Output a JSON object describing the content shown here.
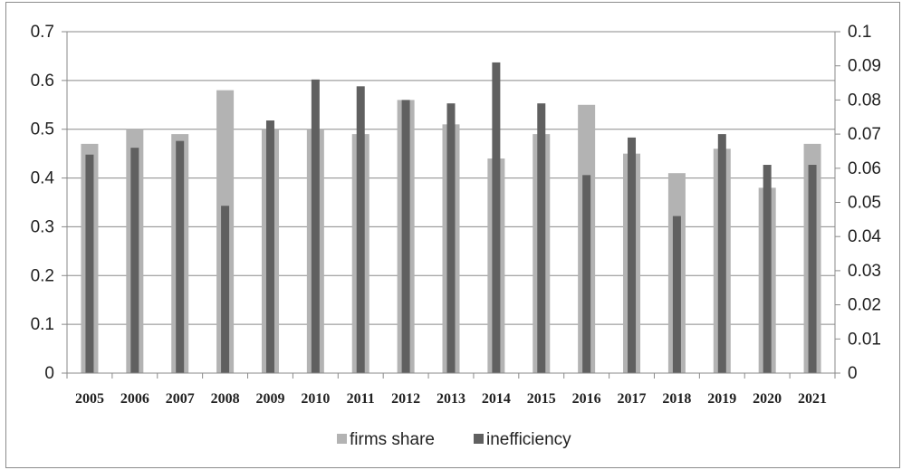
{
  "chart_data": {
    "type": "bar",
    "categories": [
      "2005",
      "2006",
      "2007",
      "2008",
      "2009",
      "2010",
      "2011",
      "2012",
      "2013",
      "2014",
      "2015",
      "2016",
      "2017",
      "2018",
      "2019",
      "2020",
      "2021"
    ],
    "series": [
      {
        "name": "firms share",
        "axis": "left",
        "color": "#b3b3b3",
        "values": [
          0.47,
          0.5,
          0.49,
          0.58,
          0.5,
          0.5,
          0.49,
          0.56,
          0.51,
          0.44,
          0.49,
          0.55,
          0.45,
          0.41,
          0.46,
          0.38,
          0.47
        ]
      },
      {
        "name": "inefficiency",
        "axis": "right",
        "color": "#606060",
        "values": [
          0.064,
          0.066,
          0.068,
          0.049,
          0.074,
          0.086,
          0.084,
          0.08,
          0.079,
          0.091,
          0.079,
          0.058,
          0.069,
          0.046,
          0.07,
          0.061,
          0.061
        ]
      }
    ],
    "y_left": {
      "ylim": [
        0,
        0.7
      ],
      "ticks": [
        "0",
        "0.1",
        "0.2",
        "0.3",
        "0.4",
        "0.5",
        "0.6",
        "0.7"
      ]
    },
    "y_right": {
      "ylim": [
        0,
        0.1
      ],
      "ticks": [
        "0",
        "0.01",
        "0.02",
        "0.03",
        "0.04",
        "0.05",
        "0.06",
        "0.07",
        "0.08",
        "0.09",
        "0.1"
      ]
    },
    "title": "",
    "xlabel": "",
    "ylabel": "",
    "grid": true,
    "gridColor": "#8a8a8a",
    "axisColor": "#8a8a8a",
    "legend_position": "bottom"
  }
}
